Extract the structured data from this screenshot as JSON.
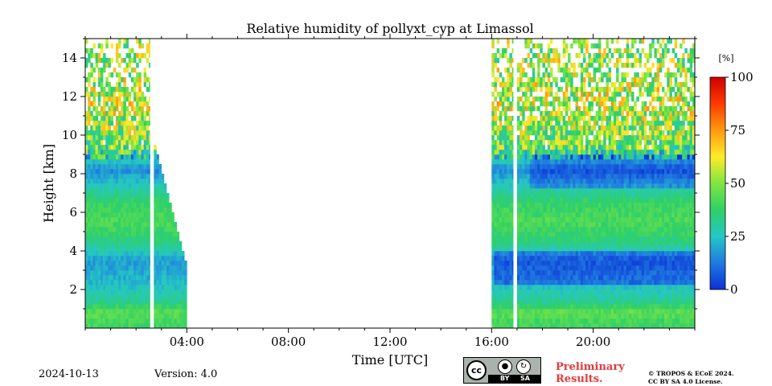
{
  "chart_data": {
    "type": "heatmap",
    "title": "Relative humidity of pollyxt_cyp at Limassol",
    "xlabel": "Time [UTC]",
    "ylabel": "Height [km]",
    "x_unit": "hours UTC",
    "xlim": [
      0,
      24
    ],
    "ylim": [
      0,
      15
    ],
    "x_ticks": [
      4,
      8,
      12,
      16,
      20
    ],
    "x_tick_labels": [
      "04:00",
      "08:00",
      "12:00",
      "16:00",
      "20:00"
    ],
    "y_ticks": [
      2,
      4,
      6,
      8,
      10,
      12,
      14
    ],
    "y_tick_labels": [
      "2",
      "4",
      "6",
      "8",
      "10",
      "12",
      "14"
    ],
    "colorbar": {
      "unit_label": "[%]",
      "range": [
        0,
        100
      ],
      "ticks": [
        0,
        25,
        50,
        75,
        100
      ],
      "tick_labels": [
        "0",
        "25",
        "50",
        "75",
        "100"
      ],
      "colormap": [
        "#0b31d6",
        "#1f7ae0",
        "#25c7c4",
        "#2fd068",
        "#7fe640",
        "#ffeb2a",
        "#ff9a0f",
        "#ff3a00",
        "#cc0000"
      ]
    },
    "data_segments": [
      {
        "start": 0.0,
        "end": 2.55,
        "top_km": 15
      },
      {
        "start": 2.7,
        "end": 4.0,
        "top_km": 9.5
      },
      {
        "start": 16.0,
        "end": 16.85,
        "top_km": 15
      },
      {
        "start": 17.0,
        "end": 24.0,
        "top_km": 15
      }
    ],
    "profile_rh_percent": [
      {
        "height_km": 0.3,
        "rh": 40
      },
      {
        "height_km": 0.8,
        "rh": 45
      },
      {
        "height_km": 1.5,
        "rh": 30
      },
      {
        "height_km": 2.5,
        "rh": 22
      },
      {
        "height_km": 3.5,
        "rh": 18
      },
      {
        "height_km": 4.5,
        "rh": 35
      },
      {
        "height_km": 5.5,
        "rh": 42
      },
      {
        "height_km": 6.5,
        "rh": 38
      },
      {
        "height_km": 7.5,
        "rh": 25
      },
      {
        "height_km": 8.2,
        "rh": 15
      },
      {
        "height_km": 9.5,
        "rh": 45
      },
      {
        "height_km": 11.5,
        "rh": 55
      },
      {
        "height_km": 14.0,
        "rh": 50
      }
    ]
  },
  "footer": {
    "date": "2024-10-13",
    "version": "Version: 4.0",
    "license_badge": {
      "cc": "cc",
      "by": "BY",
      "sa": "SA"
    },
    "preliminary": "Preliminary Results.",
    "copyright_line1": "© TROPOS & ECoE 2024.",
    "copyright_line2": "CC BY SA 4.0 License."
  }
}
